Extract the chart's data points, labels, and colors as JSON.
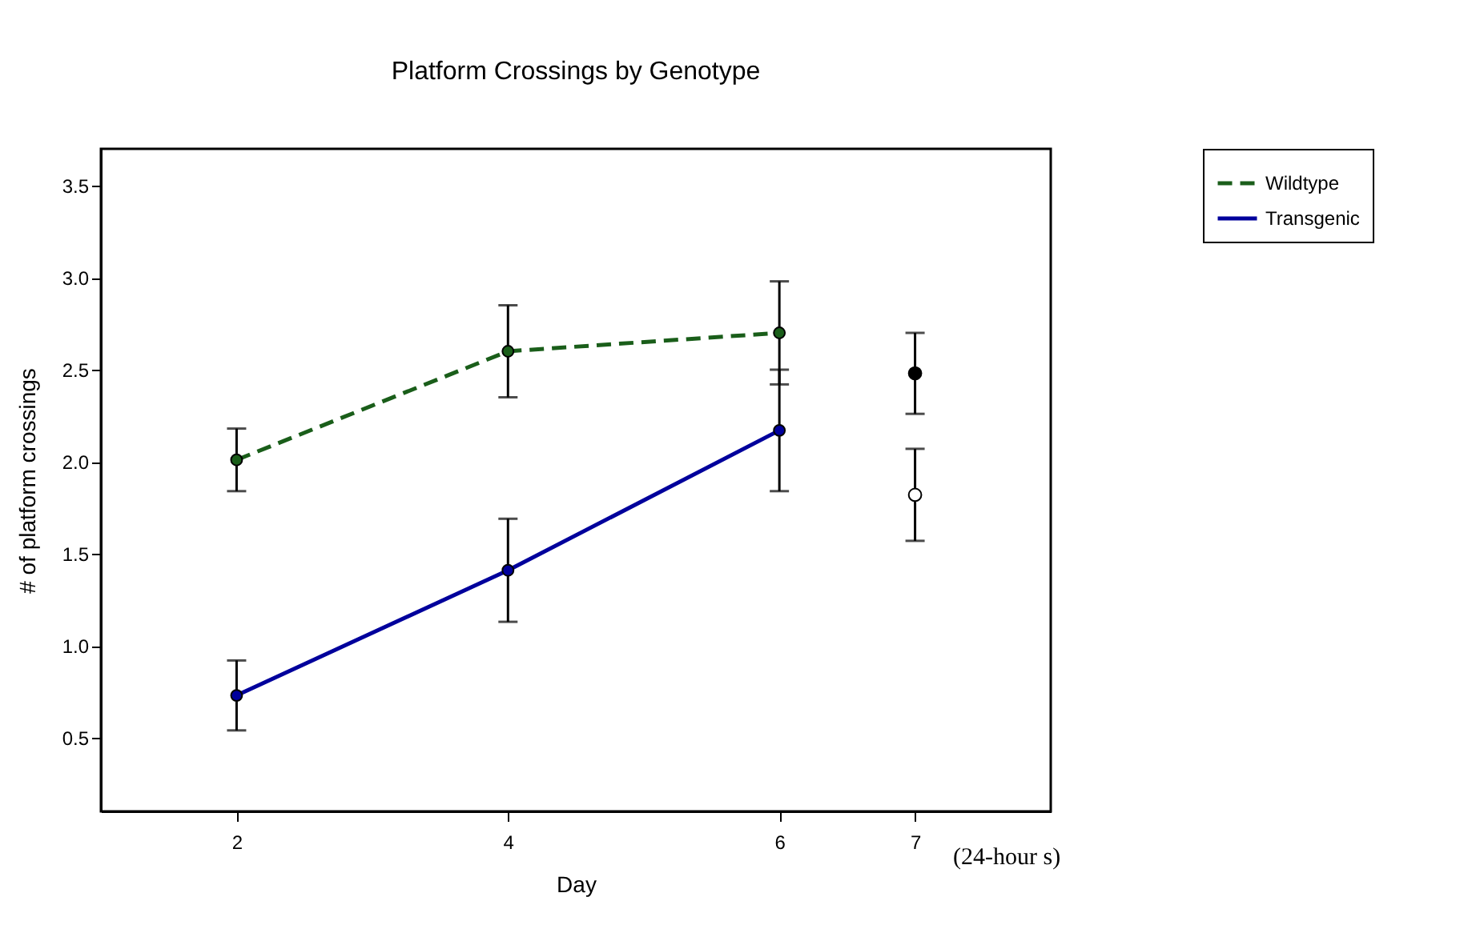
{
  "chart_data": {
    "type": "line",
    "title": "Platform Crossings by Genotype",
    "xlabel": "Day",
    "ylabel": "# of platform crossings",
    "xlim": [
      1,
      8
    ],
    "xticks": [
      2,
      4,
      6,
      7
    ],
    "ylim": [
      0.1,
      3.7
    ],
    "yticks": [
      0.5,
      {
        "value": 1,
        "label": "1.0"
      },
      1.5,
      {
        "value": 2,
        "label": "2.0"
      },
      2.5,
      {
        "value": 3,
        "label": "3.0"
      },
      3.5
    ],
    "grid": false,
    "legend": "top right",
    "marker": "circle",
    "annotations": [
      "(24-hour s)"
    ],
    "series": [
      {
        "name": "Wildtype",
        "color": "#1a5e1a",
        "line_style": "dashed",
        "x": [
          2,
          4,
          6
        ],
        "values": [
          2.01,
          2.6,
          2.7
        ],
        "errors": [
          0.17,
          0.25,
          0.28
        ]
      },
      {
        "name": "Transgenic",
        "color": "#00009c",
        "line_style": "solid",
        "x": [
          2,
          4,
          6
        ],
        "values": [
          0.73,
          1.41,
          2.17
        ],
        "errors": [
          0.19,
          0.28,
          0.33
        ]
      },
      {
        "type": "scatter",
        "color": "#000000",
        "x": [
          7
        ],
        "values": [
          2.48
        ],
        "errors": [
          0.22
        ]
      },
      {
        "type": "scatter",
        "color": "#ffffff",
        "x": [
          7
        ],
        "values": [
          1.82
        ],
        "errors": [
          0.25
        ]
      }
    ]
  }
}
